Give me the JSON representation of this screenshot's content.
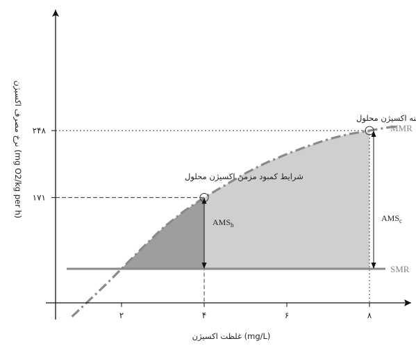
{
  "chart_data": {
    "type": "area",
    "title": "",
    "xlabel": "غلظت اکسیژن (mg/L)",
    "ylabel": "نرخ مصرف اکسیژن (mg O2/kg per h)",
    "xlim": [
      0.5,
      9.5
    ],
    "ylim": [
      60,
      310
    ],
    "x_ticks": [
      {
        "value": 2,
        "label": "۲"
      },
      {
        "value": 4,
        "label": "۴"
      },
      {
        "value": 6,
        "label": "۶"
      },
      {
        "value": 8,
        "label": "۸"
      }
    ],
    "y_ticks": [
      {
        "value": 171,
        "label": "۱۷۱"
      },
      {
        "value": 248,
        "label": "۲۴۸"
      }
    ],
    "series": [
      {
        "name": "MMR",
        "x": [
          1.2,
          1.6,
          2.0,
          2.5,
          3.0,
          3.5,
          4.0,
          4.5,
          5.0,
          5.5,
          6.0,
          6.5,
          7.0,
          7.5,
          8.0,
          8.5
        ],
        "y": [
          52,
          70,
          89,
          113,
          136,
          155,
          171,
          185,
          199,
          211,
          221,
          230,
          238,
          244,
          248,
          252
        ]
      },
      {
        "name": "SMR",
        "x": [
          0.5,
          9.3
        ],
        "y": [
          89,
          89
        ]
      }
    ],
    "annotations": [
      {
        "text": "شرایط بهینه اکسیژن محلول",
        "x": 8,
        "y": 248
      },
      {
        "text": "شرایط کمبود مزمن اکسیژن محلول",
        "x": 4,
        "y": 171
      }
    ],
    "ams_labels": [
      {
        "label": "AMS",
        "sub": "h",
        "x": 4,
        "from": 89,
        "to": 171
      },
      {
        "label": "AMS",
        "sub": "c",
        "x": 8,
        "from": 89,
        "to": 248
      }
    ],
    "colors": {
      "mmr_curve": "#8a8a8a",
      "smr_line": "#8a8a8a",
      "fill_light": "#cfcfcf",
      "fill_dark": "#9e9e9e"
    }
  }
}
